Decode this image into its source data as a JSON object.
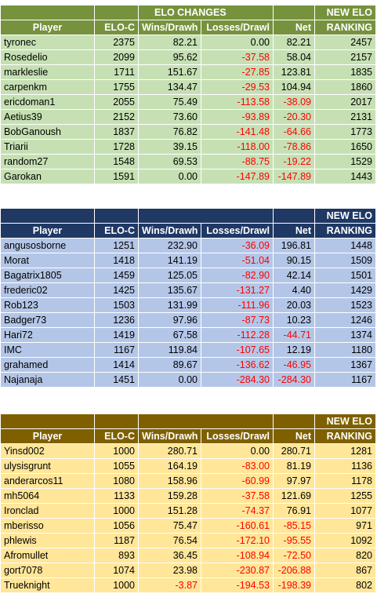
{
  "sections": [
    {
      "theme": "green",
      "header_top": {
        "changes": "ELO CHANGES",
        "new_elo": "NEW ELO"
      },
      "columns": [
        "Player",
        "ELO-C",
        "Wins/Drawh",
        "Losses/Drawl",
        "Net",
        "RANKING"
      ],
      "rows": [
        [
          "tyronec",
          "2375",
          "82.21",
          "0.00",
          "82.21",
          "2457"
        ],
        [
          "Rosedelio",
          "2099",
          "95.62",
          "-37.58",
          "58.04",
          "2157"
        ],
        [
          "markleslie",
          "1711",
          "151.67",
          "-27.85",
          "123.81",
          "1835"
        ],
        [
          "carpenkm",
          "1755",
          "134.47",
          "-29.53",
          "104.94",
          "1860"
        ],
        [
          "ericdoman1",
          "2055",
          "75.49",
          "-113.58",
          "-38.09",
          "2017"
        ],
        [
          "Aetius39",
          "2152",
          "73.60",
          "-93.89",
          "-20.30",
          "2131"
        ],
        [
          "BobGanoush",
          "1837",
          "76.82",
          "-141.48",
          "-64.66",
          "1773"
        ],
        [
          "Triarii",
          "1728",
          "39.15",
          "-118.00",
          "-78.86",
          "1650"
        ],
        [
          "random27",
          "1548",
          "69.53",
          "-88.75",
          "-19.22",
          "1529"
        ],
        [
          "Garokan",
          "1591",
          "0.00",
          "-147.89",
          "-147.89",
          "1443"
        ]
      ]
    },
    {
      "theme": "blue",
      "header_top": {
        "changes": "",
        "new_elo": "NEW ELO"
      },
      "columns": [
        "Player",
        "ELO-C",
        "Wins/Drawh",
        "Losses/Drawl",
        "Net",
        "RANKING"
      ],
      "rows": [
        [
          "angusosborne",
          "1251",
          "232.90",
          "-36.09",
          "196.81",
          "1448"
        ],
        [
          "Morat",
          "1418",
          "141.19",
          "-51.04",
          "90.15",
          "1509"
        ],
        [
          "Bagatrix1805",
          "1459",
          "125.05",
          "-82.90",
          "42.14",
          "1501"
        ],
        [
          "frederic02",
          "1425",
          "135.67",
          "-131.27",
          "4.40",
          "1429"
        ],
        [
          "Rob123",
          "1503",
          "131.99",
          "-111.96",
          "20.03",
          "1523"
        ],
        [
          "Badger73",
          "1236",
          "97.96",
          "-87.73",
          "10.23",
          "1246"
        ],
        [
          "Hari72",
          "1419",
          "67.58",
          "-112.28",
          "-44.71",
          "1374"
        ],
        [
          "IMC",
          "1167",
          "119.84",
          "-107.65",
          "12.19",
          "1180"
        ],
        [
          "grahamed",
          "1414",
          "89.67",
          "-136.62",
          "-46.95",
          "1367"
        ],
        [
          "Najanaja",
          "1451",
          "0.00",
          "-284.30",
          "-284.30",
          "1167"
        ]
      ]
    },
    {
      "theme": "yellow",
      "header_top": {
        "changes": "",
        "new_elo": "NEW ELO"
      },
      "columns": [
        "Player",
        "ELO-C",
        "Wins/Drawh",
        "Losses/Drawl",
        "Net",
        "RANKING"
      ],
      "rows": [
        [
          "Yinsd002",
          "1000",
          "280.71",
          "0.00",
          "280.71",
          "1281"
        ],
        [
          "ulysisgrunt",
          "1055",
          "164.19",
          "-83.00",
          "81.19",
          "1136"
        ],
        [
          "anderarcos11",
          "1080",
          "158.96",
          "-60.99",
          "97.97",
          "1178"
        ],
        [
          "mh5064",
          "1133",
          "159.28",
          "-37.58",
          "121.69",
          "1255"
        ],
        [
          "Ironclad",
          "1000",
          "151.28",
          "-74.37",
          "76.91",
          "1077"
        ],
        [
          "mberisso",
          "1056",
          "75.47",
          "-160.61",
          "-85.15",
          "971"
        ],
        [
          "phlewis",
          "1187",
          "76.54",
          "-172.10",
          "-95.55",
          "1092"
        ],
        [
          "Afromullet",
          "893",
          "36.45",
          "-108.94",
          "-72.50",
          "820"
        ],
        [
          "gort7078",
          "1074",
          "23.98",
          "-230.87",
          "-206.88",
          "867"
        ],
        [
          "Trueknight",
          "1000",
          "-3.87",
          "-194.53",
          "-198.39",
          "802"
        ]
      ]
    }
  ],
  "colors": {
    "green_header": "#76923c",
    "green_row": "#c6e0b4",
    "blue_header": "#1f3864",
    "blue_row": "#b4c6e7",
    "yellow_header": "#7f6000",
    "yellow_row": "#ffe699",
    "negative": "#ff0000"
  }
}
